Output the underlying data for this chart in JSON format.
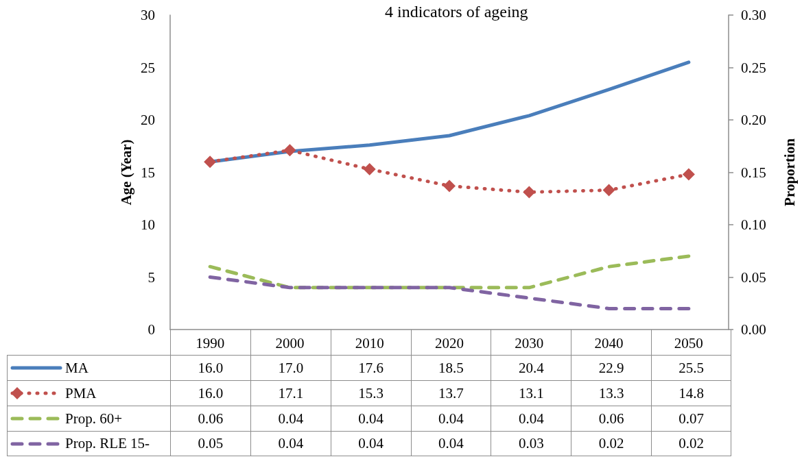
{
  "chart_data": {
    "type": "line",
    "title": "4 indicators of ageing",
    "ylabel": "Age (Year)",
    "y2label": "Proportion",
    "categories": [
      "1990",
      "2000",
      "2010",
      "2020",
      "2030",
      "2040",
      "2050"
    ],
    "series": [
      {
        "name": "MA",
        "color": "#4a7ebb",
        "values": [
          16.0,
          17.0,
          17.6,
          18.5,
          20.4,
          22.9,
          25.5
        ],
        "value_labels": [
          "16.0",
          "17.0",
          "17.6",
          "18.5",
          "20.4",
          "22.9",
          "25.5"
        ],
        "marker": "none",
        "line_style": "solid"
      },
      {
        "name": "PMA",
        "color": "#c0504d",
        "values": [
          16.0,
          17.1,
          15.3,
          13.7,
          13.1,
          13.3,
          14.8
        ],
        "value_labels": [
          "16.0",
          "17.1",
          "15.3",
          "13.7",
          "13.1",
          "13.3",
          "14.8"
        ],
        "marker": "diamond",
        "line_style": "dotted"
      },
      {
        "name": "Prop. 60+",
        "color": "#9bbb59",
        "axis": "y2",
        "values": [
          0.06,
          0.04,
          0.04,
          0.04,
          0.04,
          0.06,
          0.07
        ],
        "value_labels": [
          "0.06",
          "0.04",
          "0.04",
          "0.04",
          "0.04",
          "0.06",
          "0.07"
        ],
        "marker": "none",
        "line_style": "dashed"
      },
      {
        "name": "Prop. RLE 15-",
        "color": "#8064a2",
        "axis": "y2",
        "values": [
          0.05,
          0.04,
          0.04,
          0.04,
          0.03,
          0.02,
          0.02
        ],
        "value_labels": [
          "0.05",
          "0.04",
          "0.04",
          "0.04",
          "0.03",
          "0.02",
          "0.02"
        ],
        "marker": "none",
        "line_style": "dashed"
      }
    ],
    "ylim": [
      0,
      30
    ],
    "yticks": [
      0,
      5,
      10,
      15,
      20,
      25,
      30
    ],
    "y2lim": [
      0,
      0.3
    ],
    "y2ticks": [
      {
        "value": 0,
        "label": "0.00"
      },
      {
        "value": 0.05,
        "label": "0.05"
      },
      {
        "value": 0.1,
        "label": "0.10"
      },
      {
        "value": 0.15,
        "label": "0.15"
      },
      {
        "value": 0.2,
        "label": "0.20"
      },
      {
        "value": 0.25,
        "label": "0.25"
      },
      {
        "value": 0.3,
        "label": "0.30"
      }
    ],
    "grid": false,
    "legend": "bottom"
  }
}
